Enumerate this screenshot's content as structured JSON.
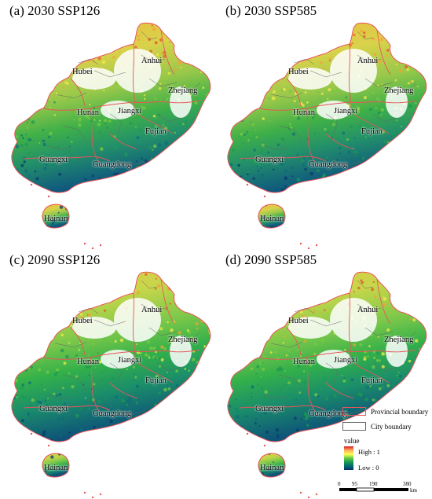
{
  "panels": [
    {
      "title": "(a) 2030 SSP126"
    },
    {
      "title": "(b) 2030 SSP585"
    },
    {
      "title": "(c) 2090 SSP126"
    },
    {
      "title": "(d) 2090 SSP585"
    }
  ],
  "provinces": [
    "Anhui",
    "Hubei",
    "Zhejiang",
    "Hunan",
    "Jiangxi",
    "Fujian",
    "Guangxi",
    "Guangdong",
    "Hainan"
  ],
  "legend": {
    "provincial_boundary": "Provincial boundary",
    "city_boundary": "City boundary",
    "value_title": "value",
    "high": "High : 1",
    "low": "Low : 0",
    "provincial_color": "#e8565a",
    "city_color": "#666666"
  },
  "scale_bar": {
    "ticks": [
      "0",
      "95",
      "190",
      "380"
    ],
    "unit": "km"
  },
  "colors": {
    "high": "#d7191c",
    "mid_high": "#fdae61",
    "mid": "#ffff55",
    "mid_low": "#66cc44",
    "low": "#08306b"
  }
}
